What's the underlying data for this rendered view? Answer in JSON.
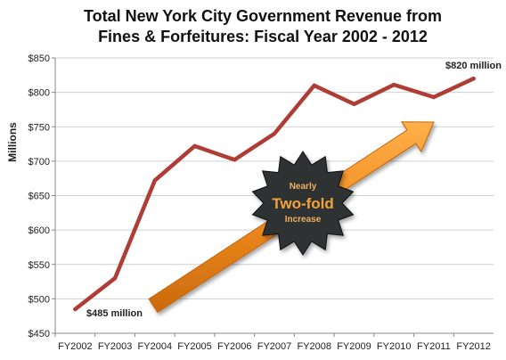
{
  "chart_data": {
    "type": "line",
    "title_line1": "Total New York City Government Revenue from",
    "title_line2": "Fines  & Forfeitures: Fiscal Year 2002 - 2012",
    "xlabel": "",
    "ylabel": "Millions",
    "categories": [
      "FY2002",
      "FY2003",
      "FY2004",
      "FY2005",
      "FY2006",
      "FY2007",
      "FY2008",
      "FY2009",
      "FY2010",
      "FY2011",
      "FY2012"
    ],
    "series": [
      {
        "values": [
          485,
          530,
          672,
          722,
          702,
          740,
          810,
          783,
          811,
          793,
          820
        ]
      }
    ],
    "ylim": [
      450,
      850
    ],
    "yticks": [
      450,
      500,
      550,
      600,
      650,
      700,
      750,
      800,
      850
    ],
    "ytick_labels": [
      "$450",
      "$500",
      "$550",
      "$600",
      "$650",
      "$700",
      "$750",
      "$800",
      "$850"
    ],
    "grid": true,
    "legend": "none",
    "annotations": {
      "start_label": "$485 million",
      "end_label": "$820 million",
      "badge_top": "Nearly",
      "badge_main": "Two-fold",
      "badge_bottom": "Increase"
    },
    "colors": {
      "line": "#b03c36",
      "arrow": "#f08a1e",
      "badge_fill": "#2f3033",
      "badge_text_main": "#f2a43a",
      "badge_text_small": "#f0b060",
      "grid": "#d0d0d0"
    }
  }
}
